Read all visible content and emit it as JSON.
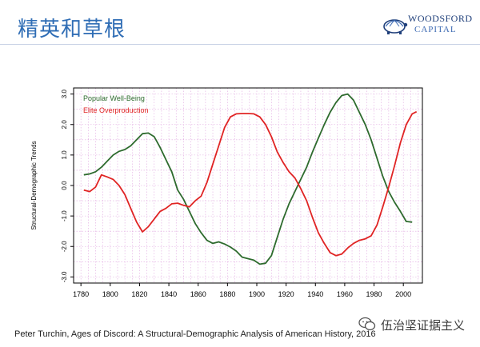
{
  "header": {
    "title": "精英和草根"
  },
  "logo": {
    "line1": "WOODSFORD",
    "line2": "CAPITAL",
    "icon": "turtle-logo-icon",
    "color": "#1f3f7a"
  },
  "chart_data": {
    "type": "line",
    "title": "",
    "xlabel": "",
    "ylabel": "Structural-Demographic Trends",
    "xlim": [
      1775,
      2013
    ],
    "ylim": [
      -3.2,
      3.2
    ],
    "x_ticks": [
      1780,
      1800,
      1820,
      1840,
      1860,
      1880,
      1900,
      1920,
      1940,
      1960,
      1980,
      2000
    ],
    "y_ticks": [
      3.0,
      2.0,
      1.0,
      0.0,
      -1.0,
      -2.0,
      -3.0
    ],
    "y_tick_labels": [
      "3.0",
      "2.0",
      "1.0",
      "0.0",
      "-1.0",
      "-2.0",
      "-3.0"
    ],
    "grid": true,
    "legend": "top-left",
    "series": [
      {
        "name": "Popular Well-Being",
        "color": "#2e6b2e",
        "points": [
          [
            1782,
            0.35
          ],
          [
            1786,
            0.38
          ],
          [
            1790,
            0.45
          ],
          [
            1794,
            0.6
          ],
          [
            1798,
            0.8
          ],
          [
            1802,
            1.0
          ],
          [
            1806,
            1.12
          ],
          [
            1810,
            1.18
          ],
          [
            1814,
            1.3
          ],
          [
            1818,
            1.5
          ],
          [
            1822,
            1.7
          ],
          [
            1826,
            1.72
          ],
          [
            1830,
            1.6
          ],
          [
            1834,
            1.25
          ],
          [
            1838,
            0.85
          ],
          [
            1842,
            0.45
          ],
          [
            1846,
            -0.15
          ],
          [
            1850,
            -0.45
          ],
          [
            1854,
            -0.85
          ],
          [
            1858,
            -1.25
          ],
          [
            1862,
            -1.55
          ],
          [
            1866,
            -1.8
          ],
          [
            1870,
            -1.9
          ],
          [
            1874,
            -1.85
          ],
          [
            1878,
            -1.92
          ],
          [
            1882,
            -2.02
          ],
          [
            1886,
            -2.15
          ],
          [
            1890,
            -2.35
          ],
          [
            1894,
            -2.4
          ],
          [
            1898,
            -2.45
          ],
          [
            1902,
            -2.58
          ],
          [
            1906,
            -2.55
          ],
          [
            1910,
            -2.3
          ],
          [
            1914,
            -1.7
          ],
          [
            1918,
            -1.1
          ],
          [
            1922,
            -0.6
          ],
          [
            1926,
            -0.2
          ],
          [
            1930,
            0.2
          ],
          [
            1934,
            0.6
          ],
          [
            1938,
            1.1
          ],
          [
            1942,
            1.55
          ],
          [
            1946,
            2.0
          ],
          [
            1950,
            2.4
          ],
          [
            1954,
            2.72
          ],
          [
            1958,
            2.95
          ],
          [
            1962,
            3.0
          ],
          [
            1966,
            2.8
          ],
          [
            1970,
            2.4
          ],
          [
            1974,
            2.0
          ],
          [
            1978,
            1.5
          ],
          [
            1982,
            0.9
          ],
          [
            1986,
            0.3
          ],
          [
            1990,
            -0.2
          ],
          [
            1994,
            -0.55
          ],
          [
            1998,
            -0.85
          ],
          [
            2002,
            -1.18
          ],
          [
            2006,
            -1.2
          ]
        ]
      },
      {
        "name": "Elite Overproduction",
        "color": "#e02424",
        "points": [
          [
            1782,
            -0.15
          ],
          [
            1786,
            -0.2
          ],
          [
            1790,
            -0.05
          ],
          [
            1794,
            0.35
          ],
          [
            1798,
            0.28
          ],
          [
            1802,
            0.2
          ],
          [
            1806,
            0.0
          ],
          [
            1810,
            -0.3
          ],
          [
            1814,
            -0.75
          ],
          [
            1818,
            -1.2
          ],
          [
            1822,
            -1.52
          ],
          [
            1826,
            -1.35
          ],
          [
            1830,
            -1.1
          ],
          [
            1834,
            -0.85
          ],
          [
            1838,
            -0.75
          ],
          [
            1842,
            -0.6
          ],
          [
            1846,
            -0.58
          ],
          [
            1850,
            -0.65
          ],
          [
            1854,
            -0.7
          ],
          [
            1858,
            -0.5
          ],
          [
            1862,
            -0.35
          ],
          [
            1866,
            0.1
          ],
          [
            1870,
            0.7
          ],
          [
            1874,
            1.3
          ],
          [
            1878,
            1.9
          ],
          [
            1882,
            2.25
          ],
          [
            1886,
            2.35
          ],
          [
            1890,
            2.36
          ],
          [
            1894,
            2.36
          ],
          [
            1898,
            2.35
          ],
          [
            1902,
            2.25
          ],
          [
            1906,
            2.0
          ],
          [
            1910,
            1.6
          ],
          [
            1914,
            1.1
          ],
          [
            1918,
            0.75
          ],
          [
            1922,
            0.45
          ],
          [
            1926,
            0.25
          ],
          [
            1930,
            -0.1
          ],
          [
            1934,
            -0.5
          ],
          [
            1938,
            -1.05
          ],
          [
            1942,
            -1.55
          ],
          [
            1946,
            -1.9
          ],
          [
            1950,
            -2.2
          ],
          [
            1954,
            -2.3
          ],
          [
            1958,
            -2.25
          ],
          [
            1962,
            -2.05
          ],
          [
            1966,
            -1.9
          ],
          [
            1970,
            -1.8
          ],
          [
            1974,
            -1.75
          ],
          [
            1978,
            -1.65
          ],
          [
            1982,
            -1.3
          ],
          [
            1986,
            -0.7
          ],
          [
            1990,
            -0.05
          ],
          [
            1994,
            0.65
          ],
          [
            1998,
            1.4
          ],
          [
            2002,
            2.0
          ],
          [
            2006,
            2.35
          ],
          [
            2009,
            2.42
          ]
        ]
      }
    ]
  },
  "caption": {
    "text": "Peter Turchin, Ages of Discord: A Structural-Demographic Analysis of American History, 2016"
  },
  "watermark": {
    "text": "伍治坚证据主义",
    "icon": "wechat-icon"
  }
}
